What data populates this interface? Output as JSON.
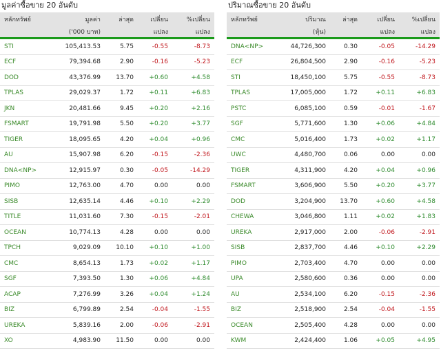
{
  "left": {
    "title": "มูลค่าซื้อขาย 20 อันดับ",
    "headers": {
      "symbol": "หลักทรัพย์",
      "value": "มูลค่า",
      "value_sub": "('000 บาท)",
      "last": "ล่าสุด",
      "change": "เปลี่ยน",
      "change_sub": "แปลง",
      "pct": "%เปลี่ยน",
      "pct_sub": "แปลง"
    },
    "rows": [
      {
        "symbol": "STI",
        "value": "105,413.53",
        "last": "5.75",
        "change": "-0.55",
        "pct": "-8.73"
      },
      {
        "symbol": "ECF",
        "value": "79,394.68",
        "last": "2.90",
        "change": "-0.16",
        "pct": "-5.23"
      },
      {
        "symbol": "DOD",
        "value": "43,376.99",
        "last": "13.70",
        "change": "+0.60",
        "pct": "+4.58"
      },
      {
        "symbol": "TPLAS",
        "value": "29,029.37",
        "last": "1.72",
        "change": "+0.11",
        "pct": "+6.83"
      },
      {
        "symbol": "JKN",
        "value": "20,481.66",
        "last": "9.45",
        "change": "+0.20",
        "pct": "+2.16"
      },
      {
        "symbol": "FSMART",
        "value": "19,791.98",
        "last": "5.50",
        "change": "+0.20",
        "pct": "+3.77"
      },
      {
        "symbol": "TIGER",
        "value": "18,095.65",
        "last": "4.20",
        "change": "+0.04",
        "pct": "+0.96"
      },
      {
        "symbol": "AU",
        "value": "15,907.98",
        "last": "6.20",
        "change": "-0.15",
        "pct": "-2.36"
      },
      {
        "symbol": "DNA<NP>",
        "value": "12,915.97",
        "last": "0.30",
        "change": "-0.05",
        "pct": "-14.29"
      },
      {
        "symbol": "PIMO",
        "value": "12,763.00",
        "last": "4.70",
        "change": "0.00",
        "pct": "0.00"
      },
      {
        "symbol": "SISB",
        "value": "12,635.14",
        "last": "4.46",
        "change": "+0.10",
        "pct": "+2.29"
      },
      {
        "symbol": "TITLE",
        "value": "11,031.60",
        "last": "7.30",
        "change": "-0.15",
        "pct": "-2.01"
      },
      {
        "symbol": "OCEAN",
        "value": "10,774.13",
        "last": "4.28",
        "change": "0.00",
        "pct": "0.00"
      },
      {
        "symbol": "TPCH",
        "value": "9,029.09",
        "last": "10.10",
        "change": "+0.10",
        "pct": "+1.00"
      },
      {
        "symbol": "CMC",
        "value": "8,654.13",
        "last": "1.73",
        "change": "+0.02",
        "pct": "+1.17"
      },
      {
        "symbol": "SGF",
        "value": "7,393.50",
        "last": "1.30",
        "change": "+0.06",
        "pct": "+4.84"
      },
      {
        "symbol": "ACAP",
        "value": "7,276.99",
        "last": "3.26",
        "change": "+0.04",
        "pct": "+1.24"
      },
      {
        "symbol": "BIZ",
        "value": "6,799.89",
        "last": "2.54",
        "change": "-0.04",
        "pct": "-1.55"
      },
      {
        "symbol": "UREKA",
        "value": "5,839.16",
        "last": "2.00",
        "change": "-0.06",
        "pct": "-2.91"
      },
      {
        "symbol": "XO",
        "value": "4,983.90",
        "last": "11.50",
        "change": "0.00",
        "pct": "0.00"
      }
    ]
  },
  "right": {
    "title": "ปริมาณซื้อขาย 20 อันดับ",
    "headers": {
      "symbol": "หลักทรัพย์",
      "value": "ปริมาณ",
      "value_sub": "(หุ้น)",
      "last": "ล่าสุด",
      "change": "เปลี่ยน",
      "change_sub": "แปลง",
      "pct": "%เปลี่ยน",
      "pct_sub": "แปลง"
    },
    "rows": [
      {
        "symbol": "DNA<NP>",
        "value": "44,726,300",
        "last": "0.30",
        "change": "-0.05",
        "pct": "-14.29"
      },
      {
        "symbol": "ECF",
        "value": "26,804,500",
        "last": "2.90",
        "change": "-0.16",
        "pct": "-5.23"
      },
      {
        "symbol": "STI",
        "value": "18,450,100",
        "last": "5.75",
        "change": "-0.55",
        "pct": "-8.73"
      },
      {
        "symbol": "TPLAS",
        "value": "17,005,000",
        "last": "1.72",
        "change": "+0.11",
        "pct": "+6.83"
      },
      {
        "symbol": "PSTC",
        "value": "6,085,100",
        "last": "0.59",
        "change": "-0.01",
        "pct": "-1.67"
      },
      {
        "symbol": "SGF",
        "value": "5,771,600",
        "last": "1.30",
        "change": "+0.06",
        "pct": "+4.84"
      },
      {
        "symbol": "CMC",
        "value": "5,016,400",
        "last": "1.73",
        "change": "+0.02",
        "pct": "+1.17"
      },
      {
        "symbol": "UWC",
        "value": "4,480,700",
        "last": "0.06",
        "change": "0.00",
        "pct": "0.00"
      },
      {
        "symbol": "TIGER",
        "value": "4,311,900",
        "last": "4.20",
        "change": "+0.04",
        "pct": "+0.96"
      },
      {
        "symbol": "FSMART",
        "value": "3,606,900",
        "last": "5.50",
        "change": "+0.20",
        "pct": "+3.77"
      },
      {
        "symbol": "DOD",
        "value": "3,204,900",
        "last": "13.70",
        "change": "+0.60",
        "pct": "+4.58"
      },
      {
        "symbol": "CHEWA",
        "value": "3,046,800",
        "last": "1.11",
        "change": "+0.02",
        "pct": "+1.83"
      },
      {
        "symbol": "UREKA",
        "value": "2,917,000",
        "last": "2.00",
        "change": "-0.06",
        "pct": "-2.91"
      },
      {
        "symbol": "SISB",
        "value": "2,837,700",
        "last": "4.46",
        "change": "+0.10",
        "pct": "+2.29"
      },
      {
        "symbol": "PIMO",
        "value": "2,703,400",
        "last": "4.70",
        "change": "0.00",
        "pct": "0.00"
      },
      {
        "symbol": "UPA",
        "value": "2,580,600",
        "last": "0.36",
        "change": "0.00",
        "pct": "0.00"
      },
      {
        "symbol": "AU",
        "value": "2,534,100",
        "last": "6.20",
        "change": "-0.15",
        "pct": "-2.36"
      },
      {
        "symbol": "BIZ",
        "value": "2,518,900",
        "last": "2.54",
        "change": "-0.04",
        "pct": "-1.55"
      },
      {
        "symbol": "OCEAN",
        "value": "2,505,400",
        "last": "4.28",
        "change": "0.00",
        "pct": "0.00"
      },
      {
        "symbol": "KWM",
        "value": "2,424,400",
        "last": "1.06",
        "change": "+0.05",
        "pct": "+4.95"
      }
    ]
  },
  "colors": {
    "positive": "#2e8b2e",
    "negative": "#c0151b",
    "header_bg": "#e3e3e3",
    "accent_line": "#1a9a1a"
  }
}
